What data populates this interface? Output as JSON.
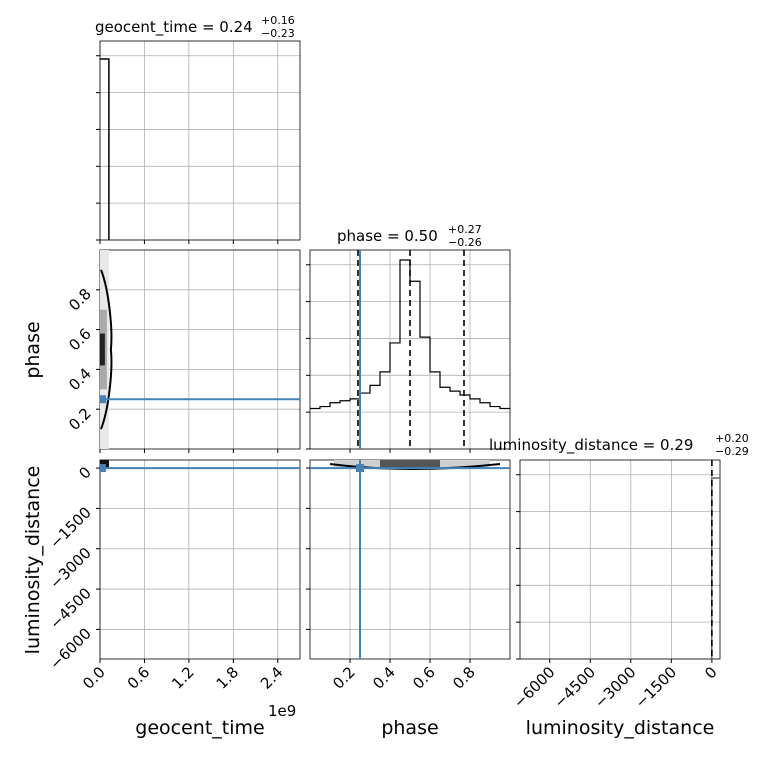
{
  "chart_data": {
    "type": "corner",
    "parameters": [
      "geocent_time",
      "phase",
      "luminosity_distance"
    ],
    "x_offset_label": "1e9",
    "titles": [
      {
        "param": "geocent_time",
        "text": "geocent_time = 0.24",
        "plus": "+0.16",
        "minus": "−0.23"
      },
      {
        "param": "phase",
        "text": "phase = 0.50",
        "plus": "+0.27",
        "minus": "−0.26"
      },
      {
        "param": "luminosity_distance",
        "text": "luminosity_distance = 0.29",
        "plus": "+0.20",
        "minus": "−0.29"
      }
    ],
    "ticks": {
      "geocent_time": {
        "values": [
          0.0,
          0.6,
          1.2,
          1.8,
          2.4
        ],
        "labels": [
          "0.0",
          "0.6",
          "1.2",
          "1.8",
          "2.4"
        ],
        "range": [
          0.0,
          2.7
        ]
      },
      "phase": {
        "values": [
          0.2,
          0.4,
          0.6,
          0.8
        ],
        "labels": [
          "0.2",
          "0.4",
          "0.6",
          "0.8"
        ],
        "range": [
          0.0,
          1.0
        ]
      },
      "luminosity_distance": {
        "values": [
          -6000,
          -4500,
          -3000,
          -1500,
          0
        ],
        "labels": [
          "−6000",
          "−4500",
          "−3000",
          "−1500",
          "0"
        ],
        "range": [
          -7100,
          300
        ]
      }
    },
    "geocent_time_hist": {
      "bin_edges": [
        0.0,
        0.12
      ],
      "counts": [
        1.0
      ]
    },
    "phase_hist": {
      "bin_edges": [
        0.0,
        0.05,
        0.1,
        0.15,
        0.2,
        0.25,
        0.3,
        0.35,
        0.4,
        0.45,
        0.5,
        0.55,
        0.6,
        0.65,
        0.7,
        0.75,
        0.8,
        0.85,
        0.9,
        0.95,
        1.0
      ],
      "counts": [
        0.21,
        0.22,
        0.24,
        0.25,
        0.26,
        0.29,
        0.33,
        0.4,
        0.55,
        0.98,
        0.87,
        0.58,
        0.4,
        0.32,
        0.3,
        0.28,
        0.26,
        0.24,
        0.22,
        0.21
      ],
      "quantiles": [
        0.24,
        0.5,
        0.77
      ]
    },
    "luminosity_distance_hist": {
      "bin_edges": [
        -5,
        300
      ],
      "counts": [
        0.9
      ],
      "quantiles": [
        0.0
      ]
    },
    "truths": {
      "geocent_time": 0.02,
      "phase": 0.25,
      "luminosity_distance": 0.0
    },
    "grid": true
  }
}
